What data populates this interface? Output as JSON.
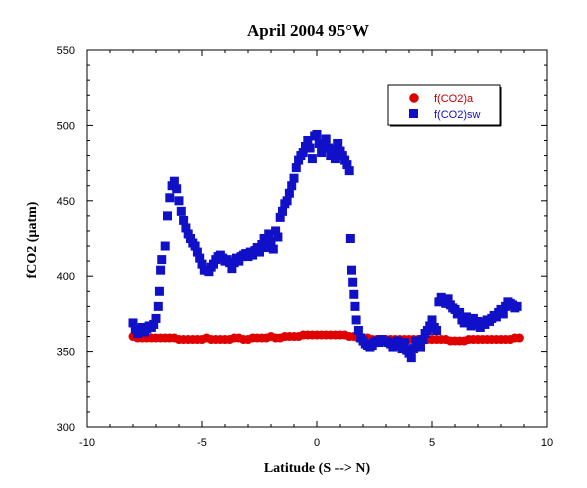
{
  "chart_data": {
    "type": "scatter",
    "title": "April 2004 95°W",
    "xlabel": "Latitude (S --> N)",
    "ylabel": "fCO2 (µatm)",
    "xlim": [
      -10,
      10
    ],
    "ylim": [
      300,
      550
    ],
    "xticks": [
      -10,
      -5,
      0,
      5,
      10
    ],
    "yticks": [
      300,
      350,
      400,
      450,
      500,
      550
    ],
    "grid": false,
    "legend": "top-right",
    "series": [
      {
        "name": "f(CO2)a",
        "marker": "circle",
        "color": "#e00000",
        "points": [
          [
            -8.0,
            360
          ],
          [
            -7.8,
            359
          ],
          [
            -7.6,
            359
          ],
          [
            -7.4,
            359
          ],
          [
            -7.2,
            359
          ],
          [
            -7.0,
            359
          ],
          [
            -6.8,
            359
          ],
          [
            -6.6,
            359
          ],
          [
            -6.4,
            359
          ],
          [
            -6.2,
            359
          ],
          [
            -6.0,
            358
          ],
          [
            -5.8,
            358
          ],
          [
            -5.6,
            358
          ],
          [
            -5.4,
            358
          ],
          [
            -5.2,
            358
          ],
          [
            -5.0,
            358
          ],
          [
            -4.8,
            359
          ],
          [
            -4.6,
            358
          ],
          [
            -4.4,
            358
          ],
          [
            -4.2,
            358
          ],
          [
            -4.0,
            358
          ],
          [
            -3.8,
            358
          ],
          [
            -3.6,
            359
          ],
          [
            -3.4,
            359
          ],
          [
            -3.2,
            358
          ],
          [
            -3.0,
            358
          ],
          [
            -2.8,
            359
          ],
          [
            -2.6,
            359
          ],
          [
            -2.4,
            359
          ],
          [
            -2.2,
            359
          ],
          [
            -2.0,
            360
          ],
          [
            -1.8,
            359
          ],
          [
            -1.6,
            359
          ],
          [
            -1.4,
            360
          ],
          [
            -1.2,
            360
          ],
          [
            -1.0,
            360
          ],
          [
            -0.8,
            360
          ],
          [
            -0.6,
            361
          ],
          [
            -0.4,
            361
          ],
          [
            -0.2,
            361
          ],
          [
            0.0,
            361
          ],
          [
            0.2,
            361
          ],
          [
            0.4,
            361
          ],
          [
            0.6,
            361
          ],
          [
            0.8,
            361
          ],
          [
            1.0,
            361
          ],
          [
            1.2,
            361
          ],
          [
            1.4,
            360
          ],
          [
            1.6,
            360
          ],
          [
            1.8,
            359
          ],
          [
            2.0,
            359
          ],
          [
            2.2,
            359
          ],
          [
            2.4,
            358
          ],
          [
            2.6,
            358
          ],
          [
            2.8,
            358
          ],
          [
            3.0,
            358
          ],
          [
            3.2,
            358
          ],
          [
            3.4,
            358
          ],
          [
            3.6,
            358
          ],
          [
            3.8,
            358
          ],
          [
            4.0,
            358
          ],
          [
            4.2,
            358
          ],
          [
            4.4,
            358
          ],
          [
            4.6,
            358
          ],
          [
            4.8,
            358
          ],
          [
            5.0,
            358
          ],
          [
            5.2,
            358
          ],
          [
            5.4,
            358
          ],
          [
            5.6,
            358
          ],
          [
            5.8,
            357
          ],
          [
            6.0,
            357
          ],
          [
            6.2,
            357
          ],
          [
            6.4,
            357
          ],
          [
            6.6,
            358
          ],
          [
            6.8,
            358
          ],
          [
            7.0,
            358
          ],
          [
            7.2,
            358
          ],
          [
            7.4,
            358
          ],
          [
            7.6,
            358
          ],
          [
            7.8,
            358
          ],
          [
            8.0,
            358
          ],
          [
            8.2,
            358
          ],
          [
            8.4,
            358
          ],
          [
            8.6,
            359
          ],
          [
            8.8,
            359
          ]
        ]
      },
      {
        "name": "f(CO2)sw",
        "marker": "square",
        "color": "#1010c8",
        "points": [
          [
            -8.0,
            369
          ],
          [
            -7.9,
            365
          ],
          [
            -7.8,
            362
          ],
          [
            -7.7,
            364
          ],
          [
            -7.6,
            366
          ],
          [
            -7.5,
            363
          ],
          [
            -7.4,
            365
          ],
          [
            -7.3,
            367
          ],
          [
            -7.2,
            366
          ],
          [
            -7.1,
            368
          ],
          [
            -7.0,
            372
          ],
          [
            -6.9,
            380
          ],
          [
            -6.85,
            390
          ],
          [
            -6.8,
            404
          ],
          [
            -6.75,
            411
          ],
          [
            -6.6,
            420
          ],
          [
            -6.5,
            440
          ],
          [
            -6.4,
            452
          ],
          [
            -6.3,
            460
          ],
          [
            -6.2,
            463
          ],
          [
            -6.1,
            458
          ],
          [
            -6.0,
            450
          ],
          [
            -5.9,
            443
          ],
          [
            -5.8,
            437
          ],
          [
            -5.7,
            432
          ],
          [
            -5.6,
            428
          ],
          [
            -5.5,
            425
          ],
          [
            -5.4,
            422
          ],
          [
            -5.3,
            420
          ],
          [
            -5.2,
            416
          ],
          [
            -5.1,
            412
          ],
          [
            -5.0,
            408
          ],
          [
            -4.9,
            404
          ],
          [
            -4.8,
            404
          ],
          [
            -4.7,
            403
          ],
          [
            -4.6,
            406
          ],
          [
            -4.5,
            408
          ],
          [
            -4.4,
            411
          ],
          [
            -4.3,
            413
          ],
          [
            -4.2,
            414
          ],
          [
            -4.1,
            412
          ],
          [
            -4.0,
            410
          ],
          [
            -3.9,
            411
          ],
          [
            -3.8,
            409
          ],
          [
            -3.7,
            405
          ],
          [
            -3.6,
            409
          ],
          [
            -3.5,
            412
          ],
          [
            -3.4,
            410
          ],
          [
            -3.3,
            413
          ],
          [
            -3.2,
            414
          ],
          [
            -3.1,
            415
          ],
          [
            -3.0,
            413
          ],
          [
            -2.9,
            416
          ],
          [
            -2.8,
            414
          ],
          [
            -2.7,
            417
          ],
          [
            -2.6,
            419
          ],
          [
            -2.5,
            416
          ],
          [
            -2.4,
            421
          ],
          [
            -2.3,
            425
          ],
          [
            -2.2,
            419
          ],
          [
            -2.1,
            428
          ],
          [
            -2.0,
            423
          ],
          [
            -1.9,
            418
          ],
          [
            -1.8,
            430
          ],
          [
            -1.7,
            426
          ],
          [
            -1.6,
            439
          ],
          [
            -1.5,
            443
          ],
          [
            -1.4,
            448
          ],
          [
            -1.3,
            450
          ],
          [
            -1.2,
            455
          ],
          [
            -1.1,
            460
          ],
          [
            -1.0,
            465
          ],
          [
            -0.9,
            472
          ],
          [
            -0.8,
            477
          ],
          [
            -0.7,
            480
          ],
          [
            -0.6,
            482
          ],
          [
            -0.5,
            486
          ],
          [
            -0.4,
            490
          ],
          [
            -0.3,
            485
          ],
          [
            -0.2,
            478
          ],
          [
            -0.1,
            493
          ],
          [
            0.0,
            494
          ],
          [
            0.1,
            488
          ],
          [
            0.2,
            482
          ],
          [
            0.3,
            486
          ],
          [
            0.4,
            491
          ],
          [
            0.5,
            485
          ],
          [
            0.6,
            480
          ],
          [
            0.7,
            484
          ],
          [
            0.8,
            478
          ],
          [
            0.9,
            488
          ],
          [
            1.0,
            483
          ],
          [
            1.1,
            480
          ],
          [
            1.2,
            477
          ],
          [
            1.3,
            474
          ],
          [
            1.4,
            470
          ],
          [
            1.45,
            425
          ],
          [
            1.5,
            404
          ],
          [
            1.55,
            396
          ],
          [
            1.6,
            388
          ],
          [
            1.65,
            380
          ],
          [
            1.7,
            371
          ],
          [
            1.8,
            364
          ],
          [
            1.9,
            359
          ],
          [
            2.0,
            357
          ],
          [
            2.1,
            355
          ],
          [
            2.2,
            354
          ],
          [
            2.3,
            353
          ],
          [
            2.4,
            354
          ],
          [
            2.5,
            356
          ],
          [
            2.6,
            357
          ],
          [
            2.7,
            356
          ],
          [
            2.8,
            358
          ],
          [
            2.9,
            357
          ],
          [
            3.0,
            357
          ],
          [
            3.1,
            356
          ],
          [
            3.2,
            355
          ],
          [
            3.3,
            353
          ],
          [
            3.4,
            355
          ],
          [
            3.5,
            357
          ],
          [
            3.6,
            354
          ],
          [
            3.7,
            352
          ],
          [
            3.8,
            356
          ],
          [
            3.9,
            351
          ],
          [
            4.0,
            349
          ],
          [
            4.1,
            346
          ],
          [
            4.2,
            352
          ],
          [
            4.3,
            357
          ],
          [
            4.4,
            355
          ],
          [
            4.5,
            353
          ],
          [
            4.6,
            358
          ],
          [
            4.7,
            362
          ],
          [
            4.8,
            364
          ],
          [
            4.9,
            367
          ],
          [
            5.0,
            371
          ],
          [
            5.1,
            366
          ],
          [
            5.2,
            364
          ],
          [
            5.3,
            383
          ],
          [
            5.4,
            386
          ],
          [
            5.5,
            384
          ],
          [
            5.6,
            382
          ],
          [
            5.7,
            385
          ],
          [
            5.8,
            381
          ],
          [
            5.9,
            379
          ],
          [
            6.0,
            378
          ],
          [
            6.1,
            375
          ],
          [
            6.2,
            376
          ],
          [
            6.3,
            371
          ],
          [
            6.4,
            369
          ],
          [
            6.5,
            373
          ],
          [
            6.6,
            370
          ],
          [
            6.7,
            367
          ],
          [
            6.8,
            372
          ],
          [
            6.9,
            368
          ],
          [
            7.0,
            370
          ],
          [
            7.1,
            366
          ],
          [
            7.2,
            369
          ],
          [
            7.3,
            368
          ],
          [
            7.4,
            371
          ],
          [
            7.5,
            370
          ],
          [
            7.6,
            372
          ],
          [
            7.7,
            374
          ],
          [
            7.8,
            373
          ],
          [
            7.9,
            376
          ],
          [
            8.0,
            378
          ],
          [
            8.1,
            375
          ],
          [
            8.2,
            380
          ],
          [
            8.3,
            383
          ],
          [
            8.4,
            382
          ],
          [
            8.5,
            381
          ],
          [
            8.6,
            379
          ],
          [
            8.7,
            380
          ]
        ]
      }
    ]
  }
}
